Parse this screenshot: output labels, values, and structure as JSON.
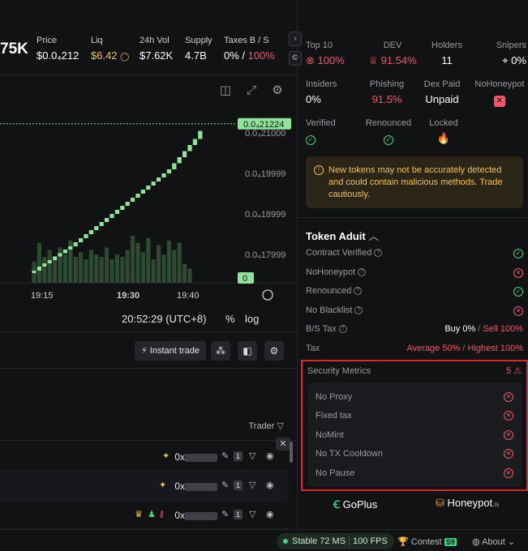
{
  "top_stats": {
    "mcap": "75K",
    "items": [
      {
        "label": "Price",
        "value": "$0.0₄212"
      },
      {
        "label": "Liq",
        "value": "$6.42"
      },
      {
        "label": "24h Vol",
        "value": "$7.62K"
      },
      {
        "label": "Supply",
        "value": "4.7B"
      },
      {
        "label": "Taxes B / S",
        "value_buy": "0%",
        "value_sell": "100%"
      }
    ]
  },
  "chart": {
    "current_price_label": "0.0₄21224",
    "current_price": 2.12e-05,
    "y_ticks": [
      "0.0₄21000",
      "0.0₄19999",
      "0.0₄18999",
      "0.0₄17999"
    ],
    "volume_label": "0",
    "x_ticks": [
      "19:15",
      "19:30",
      "19:40"
    ],
    "time_readout": "20:52:29 (UTC+8)",
    "pct_label": "%",
    "log_label": "log"
  },
  "chart_data": {
    "type": "bar",
    "title": "",
    "x": [
      "19:10",
      "19:11",
      "19:12",
      "19:13",
      "19:14",
      "19:15",
      "19:16",
      "19:17",
      "19:18",
      "19:19",
      "19:20",
      "19:21",
      "19:22",
      "19:23",
      "19:24",
      "19:25",
      "19:26",
      "19:27",
      "19:28",
      "19:29",
      "19:30",
      "19:31",
      "19:32",
      "19:33",
      "19:34",
      "19:35",
      "19:36",
      "19:37",
      "19:38",
      "19:39",
      "19:40",
      "19:41",
      "19:42"
    ],
    "series": [
      {
        "open": [
          17.55,
          17.6,
          17.7,
          17.78,
          17.86,
          17.95,
          18.03,
          18.12,
          18.2,
          18.3,
          18.4,
          18.5,
          18.6,
          18.7,
          18.8,
          18.9,
          19.0,
          19.1,
          19.2,
          19.3,
          19.4,
          19.5,
          19.6,
          19.7,
          19.8,
          19.9,
          20.0,
          20.1,
          20.25,
          20.4,
          20.55,
          20.7,
          20.85
        ],
        "close": [
          17.6,
          17.7,
          17.78,
          17.86,
          17.95,
          18.03,
          18.12,
          18.2,
          18.3,
          18.4,
          18.5,
          18.6,
          18.7,
          18.8,
          18.9,
          19.0,
          19.1,
          19.2,
          19.3,
          19.4,
          19.5,
          19.6,
          19.7,
          19.8,
          19.9,
          20.0,
          20.1,
          20.25,
          20.4,
          20.55,
          20.7,
          20.85,
          21.05
        ]
      },
      {
        "volume": [
          0.45,
          0.85,
          0.55,
          0.7,
          0.5,
          0.75,
          0.6,
          0.9,
          0.55,
          0.65,
          0.5,
          0.7,
          0.6,
          0.55,
          0.75,
          0.5,
          0.6,
          0.55,
          0.7,
          1.0,
          0.85,
          0.65,
          0.95,
          0.5,
          0.8,
          0.6,
          0.9,
          0.7,
          0.85,
          0.4,
          0.3,
          0,
          0
        ]
      }
    ],
    "ylim": [
      17.3,
      21.3
    ]
  },
  "toolbar": {
    "instant_trade": "Instant trade"
  },
  "trades": {
    "column_trader": "Trader",
    "rows": [
      {
        "prefix": "0x",
        "count": "1"
      },
      {
        "prefix": "0x",
        "count": "1"
      },
      {
        "prefix": "0x",
        "count": "1"
      }
    ]
  },
  "right": {
    "row1": [
      {
        "label": "Top 10",
        "value": "100%",
        "tone": "red"
      },
      {
        "label": "DEV",
        "value": "91.54%",
        "tone": "red"
      },
      {
        "label": "Holders",
        "value": "11",
        "tone": "white"
      },
      {
        "label": "Snipers",
        "value": "0%",
        "tone": "white"
      }
    ],
    "row2": [
      {
        "label": "Insiders",
        "value": "0%",
        "tone": "white"
      },
      {
        "label": "Phishing",
        "value": "91.5%",
        "tone": "red"
      },
      {
        "label": "Dex Paid",
        "value": "Unpaid",
        "tone": "white"
      },
      {
        "label": "NoHoneypot",
        "value": "",
        "tone": "red"
      }
    ],
    "row3": [
      {
        "label": "Verified"
      },
      {
        "label": "Renounced"
      },
      {
        "label": "Locked"
      }
    ],
    "warning": "New tokens may not be accurately detected and could contain malicious methods. Trade cautiously.",
    "audit": {
      "title": "Token Aduit",
      "rows": [
        {
          "label": "Contract Verified",
          "status": "ok"
        },
        {
          "label": "NoHoneypot",
          "status": "bad"
        },
        {
          "label": "Renounced",
          "status": "ok"
        },
        {
          "label": "No Blacklist",
          "status": "bad"
        }
      ],
      "bs_tax_label": "B/S Tax",
      "bs_buy": "Buy 0%",
      "bs_sell": "Sell 100%",
      "tax_label": "Tax",
      "tax_avg": "Average 50%",
      "tax_high": "Highest 100%"
    },
    "security": {
      "title": "Security Metrics",
      "count": "5",
      "items": [
        "No Proxy",
        "Fixed tax",
        "NoMint",
        "No TX Cooldown",
        "No Pause"
      ]
    },
    "sponsors": [
      "GoPlus",
      "Honeypot"
    ]
  },
  "status_bar": {
    "conn": "Stable 72 MS",
    "fps": "100 FPS",
    "contest": "Contest",
    "season": "S9",
    "about": "About"
  }
}
